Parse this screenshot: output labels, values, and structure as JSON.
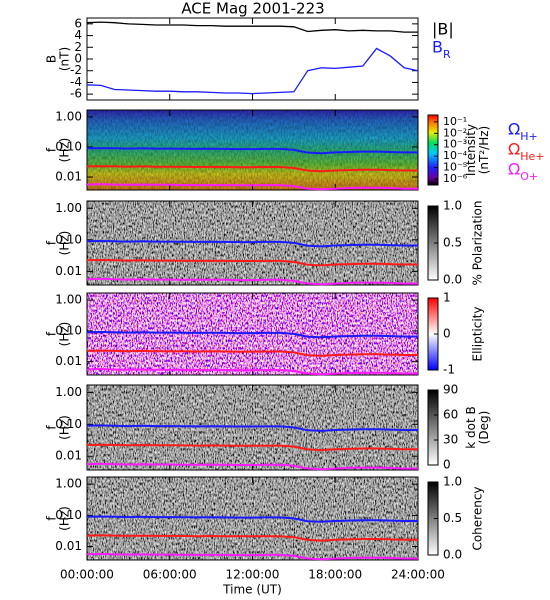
{
  "chart_data": [
    {
      "type": "line",
      "title": "ACE Mag 2001-223",
      "ylabel": [
        "B",
        "(nT)"
      ],
      "x": [
        0,
        1,
        2,
        3,
        4,
        5,
        6,
        7,
        8,
        9,
        10,
        11,
        12,
        13,
        14,
        15,
        16,
        17,
        18,
        19,
        20,
        21,
        22,
        23,
        24
      ],
      "xlim": [
        0,
        24
      ],
      "xticks": [
        0,
        6,
        12,
        18,
        24
      ],
      "ylim": [
        -7,
        7
      ],
      "yticks": [
        6,
        4,
        2,
        0,
        -2,
        -4,
        -6
      ],
      "legend": "outside-right",
      "series": [
        {
          "name": "|B|",
          "color": "#000000",
          "values": [
            6.2,
            6.3,
            6.2,
            6.0,
            5.9,
            5.8,
            5.8,
            5.8,
            5.7,
            5.7,
            5.6,
            5.6,
            5.6,
            5.6,
            5.6,
            5.5,
            4.7,
            4.9,
            5.0,
            4.8,
            4.9,
            4.8,
            4.8,
            4.6,
            4.6
          ]
        },
        {
          "name": "BR",
          "color": "#1a1aff",
          "values": [
            -4.4,
            -4.5,
            -5.2,
            -5.3,
            -5.4,
            -5.5,
            -5.5,
            -5.6,
            -5.6,
            -5.7,
            -5.8,
            -5.8,
            -5.9,
            -5.8,
            -5.7,
            -5.6,
            -2.0,
            -1.5,
            -1.6,
            -1.4,
            -1.2,
            1.8,
            0.5,
            -1.5,
            -2.0
          ]
        }
      ]
    },
    {
      "type": "spectrogram",
      "ylabel": [
        "f",
        "(Hz)"
      ],
      "colormap": "rainbow",
      "log_y": true,
      "x": [
        0,
        1,
        2,
        3,
        4,
        5,
        6,
        7,
        8,
        9,
        10,
        11,
        12,
        13,
        14,
        15,
        16,
        17,
        18,
        19,
        20,
        21,
        22,
        23,
        24
      ],
      "xlim": [
        0,
        24
      ],
      "xticks": [
        0,
        6,
        12,
        18,
        24
      ],
      "ylim": [
        0.0037,
        1.7
      ],
      "yticks": [
        {
          "value": 1,
          "label": "1.00"
        },
        {
          "value": 0.1,
          "label": "0.10"
        },
        {
          "value": 0.01,
          "label": "0.01"
        }
      ],
      "legend": "outside-right",
      "colorbar": {
        "label": [
          "Intensity",
          "(nT²/Hz)"
        ],
        "log": true,
        "lim": [
          3e-07,
          0.4
        ],
        "ticks": [
          {
            "value": 0.1,
            "label": "10⁻¹"
          },
          {
            "value": 0.01,
            "label": "10⁻²"
          },
          {
            "value": 0.001,
            "label": "10⁻³"
          },
          {
            "value": 0.0001,
            "label": "10⁻⁴"
          },
          {
            "value": 1e-05,
            "label": "10⁻⁵"
          },
          {
            "value": 1e-06,
            "label": "10⁻⁶"
          }
        ]
      },
      "series": [
        {
          "name": "ΩH+",
          "color": "#1a1aff",
          "values": [
            0.09,
            0.092,
            0.09,
            0.088,
            0.09,
            0.088,
            0.088,
            0.087,
            0.086,
            0.087,
            0.086,
            0.085,
            0.085,
            0.086,
            0.086,
            0.08,
            0.065,
            0.062,
            0.066,
            0.068,
            0.07,
            0.07,
            0.068,
            0.066,
            0.066
          ]
        },
        {
          "name": "ΩHe+",
          "color": "#ff1a1a",
          "values": [
            0.0225,
            0.023,
            0.0225,
            0.022,
            0.0225,
            0.022,
            0.022,
            0.0218,
            0.0215,
            0.0218,
            0.0215,
            0.0213,
            0.0213,
            0.0215,
            0.0215,
            0.02,
            0.0163,
            0.0155,
            0.0165,
            0.017,
            0.0175,
            0.0175,
            0.017,
            0.0165,
            0.0165
          ]
        },
        {
          "name": "ΩO+",
          "color": "#ff1aff",
          "values": [
            0.0056,
            0.0058,
            0.0056,
            0.0055,
            0.0056,
            0.0055,
            0.0055,
            0.0054,
            0.0054,
            0.0054,
            0.0054,
            0.0053,
            0.0053,
            0.0054,
            0.0054,
            0.005,
            0.0041,
            0.0039,
            0.0041,
            0.0043,
            0.0044,
            0.0044,
            0.0043,
            0.0041,
            0.0041
          ]
        }
      ]
    },
    {
      "type": "spectrogram",
      "ylabel": [
        "f",
        "(Hz)"
      ],
      "colormap": "gray",
      "log_y": true,
      "x": [
        0,
        1,
        2,
        3,
        4,
        5,
        6,
        7,
        8,
        9,
        10,
        11,
        12,
        13,
        14,
        15,
        16,
        17,
        18,
        19,
        20,
        21,
        22,
        23,
        24
      ],
      "xlim": [
        0,
        24
      ],
      "xticks": [
        0,
        6,
        12,
        18,
        24
      ],
      "ylim": [
        0.0037,
        1.7
      ],
      "yticks": [
        {
          "value": 1,
          "label": "1.00"
        },
        {
          "value": 0.1,
          "label": "0.10"
        },
        {
          "value": 0.01,
          "label": "0.01"
        }
      ],
      "colorbar": {
        "label": [
          "% Polarization"
        ],
        "lim": [
          0,
          1
        ],
        "ticks": [
          {
            "value": 0,
            "label": "0.0"
          },
          {
            "value": 0.5,
            "label": "0.5"
          },
          {
            "value": 1,
            "label": "1.0"
          }
        ]
      },
      "series": [
        {
          "color": "#1a1aff",
          "values": [
            0.09,
            0.092,
            0.09,
            0.088,
            0.09,
            0.088,
            0.088,
            0.087,
            0.086,
            0.087,
            0.086,
            0.085,
            0.085,
            0.086,
            0.086,
            0.08,
            0.065,
            0.062,
            0.066,
            0.068,
            0.07,
            0.07,
            0.068,
            0.066,
            0.066
          ]
        },
        {
          "color": "#ff1a1a",
          "values": [
            0.0225,
            0.023,
            0.0225,
            0.022,
            0.0225,
            0.022,
            0.022,
            0.0218,
            0.0215,
            0.0218,
            0.0215,
            0.0213,
            0.0213,
            0.0215,
            0.0215,
            0.02,
            0.0163,
            0.0155,
            0.0165,
            0.017,
            0.0175,
            0.0175,
            0.017,
            0.0165,
            0.0165
          ]
        },
        {
          "color": "#ff1aff",
          "values": [
            0.0056,
            0.0058,
            0.0056,
            0.0055,
            0.0056,
            0.0055,
            0.0055,
            0.0054,
            0.0054,
            0.0054,
            0.0054,
            0.0053,
            0.0053,
            0.0054,
            0.0054,
            0.005,
            0.0041,
            0.0039,
            0.0041,
            0.0043,
            0.0044,
            0.0044,
            0.0043,
            0.0041,
            0.0041
          ]
        }
      ]
    },
    {
      "type": "spectrogram",
      "ylabel": [
        "f",
        "(Hz)"
      ],
      "colormap": "bwr",
      "log_y": true,
      "x": [
        0,
        1,
        2,
        3,
        4,
        5,
        6,
        7,
        8,
        9,
        10,
        11,
        12,
        13,
        14,
        15,
        16,
        17,
        18,
        19,
        20,
        21,
        22,
        23,
        24
      ],
      "xlim": [
        0,
        24
      ],
      "xticks": [
        0,
        6,
        12,
        18,
        24
      ],
      "ylim": [
        0.0037,
        1.7
      ],
      "yticks": [
        {
          "value": 1,
          "label": "1.00"
        },
        {
          "value": 0.1,
          "label": "0.10"
        },
        {
          "value": 0.01,
          "label": "0.01"
        }
      ],
      "colorbar": {
        "label": [
          "Ellipticity"
        ],
        "lim": [
          -1,
          1
        ],
        "ticks": [
          -1,
          0,
          1
        ]
      },
      "series": [
        {
          "color": "#1a1aff",
          "values": [
            0.09,
            0.092,
            0.09,
            0.088,
            0.09,
            0.088,
            0.088,
            0.087,
            0.086,
            0.087,
            0.086,
            0.085,
            0.085,
            0.086,
            0.086,
            0.08,
            0.065,
            0.062,
            0.066,
            0.068,
            0.07,
            0.07,
            0.068,
            0.066,
            0.066
          ]
        },
        {
          "color": "#ff1a1a",
          "values": [
            0.0225,
            0.023,
            0.0225,
            0.022,
            0.0225,
            0.022,
            0.022,
            0.0218,
            0.0215,
            0.0218,
            0.0215,
            0.0213,
            0.0213,
            0.0215,
            0.0215,
            0.02,
            0.0163,
            0.0155,
            0.0165,
            0.017,
            0.0175,
            0.0175,
            0.017,
            0.0165,
            0.0165
          ]
        },
        {
          "color": "#ff1aff",
          "values": [
            0.0056,
            0.0058,
            0.0056,
            0.0055,
            0.0056,
            0.0055,
            0.0055,
            0.0054,
            0.0054,
            0.0054,
            0.0054,
            0.0053,
            0.0053,
            0.0054,
            0.0054,
            0.005,
            0.0041,
            0.0039,
            0.0041,
            0.0043,
            0.0044,
            0.0044,
            0.0043,
            0.0041,
            0.0041
          ]
        }
      ]
    },
    {
      "type": "spectrogram",
      "ylabel": [
        "f",
        "(Hz)"
      ],
      "colormap": "gray",
      "log_y": true,
      "x": [
        0,
        1,
        2,
        3,
        4,
        5,
        6,
        7,
        8,
        9,
        10,
        11,
        12,
        13,
        14,
        15,
        16,
        17,
        18,
        19,
        20,
        21,
        22,
        23,
        24
      ],
      "xlim": [
        0,
        24
      ],
      "xticks": [
        0,
        6,
        12,
        18,
        24
      ],
      "ylim": [
        0.0037,
        1.7
      ],
      "yticks": [
        {
          "value": 1,
          "label": "1.00"
        },
        {
          "value": 0.1,
          "label": "0.10"
        },
        {
          "value": 0.01,
          "label": "0.01"
        }
      ],
      "colorbar": {
        "label": [
          "k dot B",
          "(Deg)"
        ],
        "lim": [
          0,
          90
        ],
        "ticks": [
          0,
          30,
          60,
          90
        ]
      },
      "series": [
        {
          "color": "#1a1aff",
          "values": [
            0.09,
            0.092,
            0.09,
            0.088,
            0.09,
            0.088,
            0.088,
            0.087,
            0.086,
            0.087,
            0.086,
            0.085,
            0.085,
            0.086,
            0.086,
            0.08,
            0.065,
            0.062,
            0.066,
            0.068,
            0.07,
            0.07,
            0.068,
            0.066,
            0.066
          ]
        },
        {
          "color": "#ff1a1a",
          "values": [
            0.0225,
            0.023,
            0.0225,
            0.022,
            0.0225,
            0.022,
            0.022,
            0.0218,
            0.0215,
            0.0218,
            0.0215,
            0.0213,
            0.0213,
            0.0215,
            0.0215,
            0.02,
            0.0163,
            0.0155,
            0.0165,
            0.017,
            0.0175,
            0.0175,
            0.017,
            0.0165,
            0.0165
          ]
        },
        {
          "color": "#ff1aff",
          "values": [
            0.0056,
            0.0058,
            0.0056,
            0.0055,
            0.0056,
            0.0055,
            0.0055,
            0.0054,
            0.0054,
            0.0054,
            0.0054,
            0.0053,
            0.0053,
            0.0054,
            0.0054,
            0.005,
            0.0041,
            0.0039,
            0.0041,
            0.0043,
            0.0044,
            0.0044,
            0.0043,
            0.0041,
            0.0041
          ]
        }
      ]
    },
    {
      "type": "spectrogram",
      "ylabel": [
        "f",
        "(Hz)"
      ],
      "colormap": "gray",
      "log_y": true,
      "xlabel": "Time (UT)",
      "x": [
        0,
        1,
        2,
        3,
        4,
        5,
        6,
        7,
        8,
        9,
        10,
        11,
        12,
        13,
        14,
        15,
        16,
        17,
        18,
        19,
        20,
        21,
        22,
        23,
        24
      ],
      "xlim": [
        0,
        24
      ],
      "xticks": [
        {
          "value": 0,
          "label": "00:00:00"
        },
        {
          "value": 6,
          "label": "06:00:00"
        },
        {
          "value": 12,
          "label": "12:00:00"
        },
        {
          "value": 18,
          "label": "18:00:00"
        },
        {
          "value": 24,
          "label": "24:00:00"
        }
      ],
      "ylim": [
        0.0037,
        1.7
      ],
      "yticks": [
        {
          "value": 1,
          "label": "1.00"
        },
        {
          "value": 0.1,
          "label": "0.10"
        },
        {
          "value": 0.01,
          "label": "0.01"
        }
      ],
      "colorbar": {
        "label": [
          "Coherency"
        ],
        "lim": [
          0,
          1
        ],
        "ticks": [
          {
            "value": 0,
            "label": "0.0"
          },
          {
            "value": 0.5,
            "label": "0.5"
          },
          {
            "value": 1,
            "label": "1.0"
          }
        ]
      },
      "series": [
        {
          "color": "#1a1aff",
          "values": [
            0.09,
            0.092,
            0.09,
            0.088,
            0.09,
            0.088,
            0.088,
            0.087,
            0.086,
            0.087,
            0.086,
            0.085,
            0.085,
            0.086,
            0.086,
            0.08,
            0.065,
            0.062,
            0.066,
            0.068,
            0.07,
            0.07,
            0.068,
            0.066,
            0.066
          ]
        },
        {
          "color": "#ff1a1a",
          "values": [
            0.0225,
            0.023,
            0.0225,
            0.022,
            0.0225,
            0.022,
            0.022,
            0.0218,
            0.0215,
            0.0218,
            0.0215,
            0.0213,
            0.0213,
            0.0215,
            0.0215,
            0.02,
            0.0163,
            0.0155,
            0.0165,
            0.017,
            0.0175,
            0.0175,
            0.017,
            0.0165,
            0.0165
          ]
        },
        {
          "color": "#ff1aff",
          "values": [
            0.0056,
            0.0058,
            0.0056,
            0.0055,
            0.0056,
            0.0055,
            0.0055,
            0.0054,
            0.0054,
            0.0054,
            0.0054,
            0.0053,
            0.0053,
            0.0054,
            0.0054,
            0.005,
            0.0041,
            0.0039,
            0.0041,
            0.0043,
            0.0044,
            0.0044,
            0.0043,
            0.0041,
            0.0041
          ]
        }
      ]
    }
  ]
}
